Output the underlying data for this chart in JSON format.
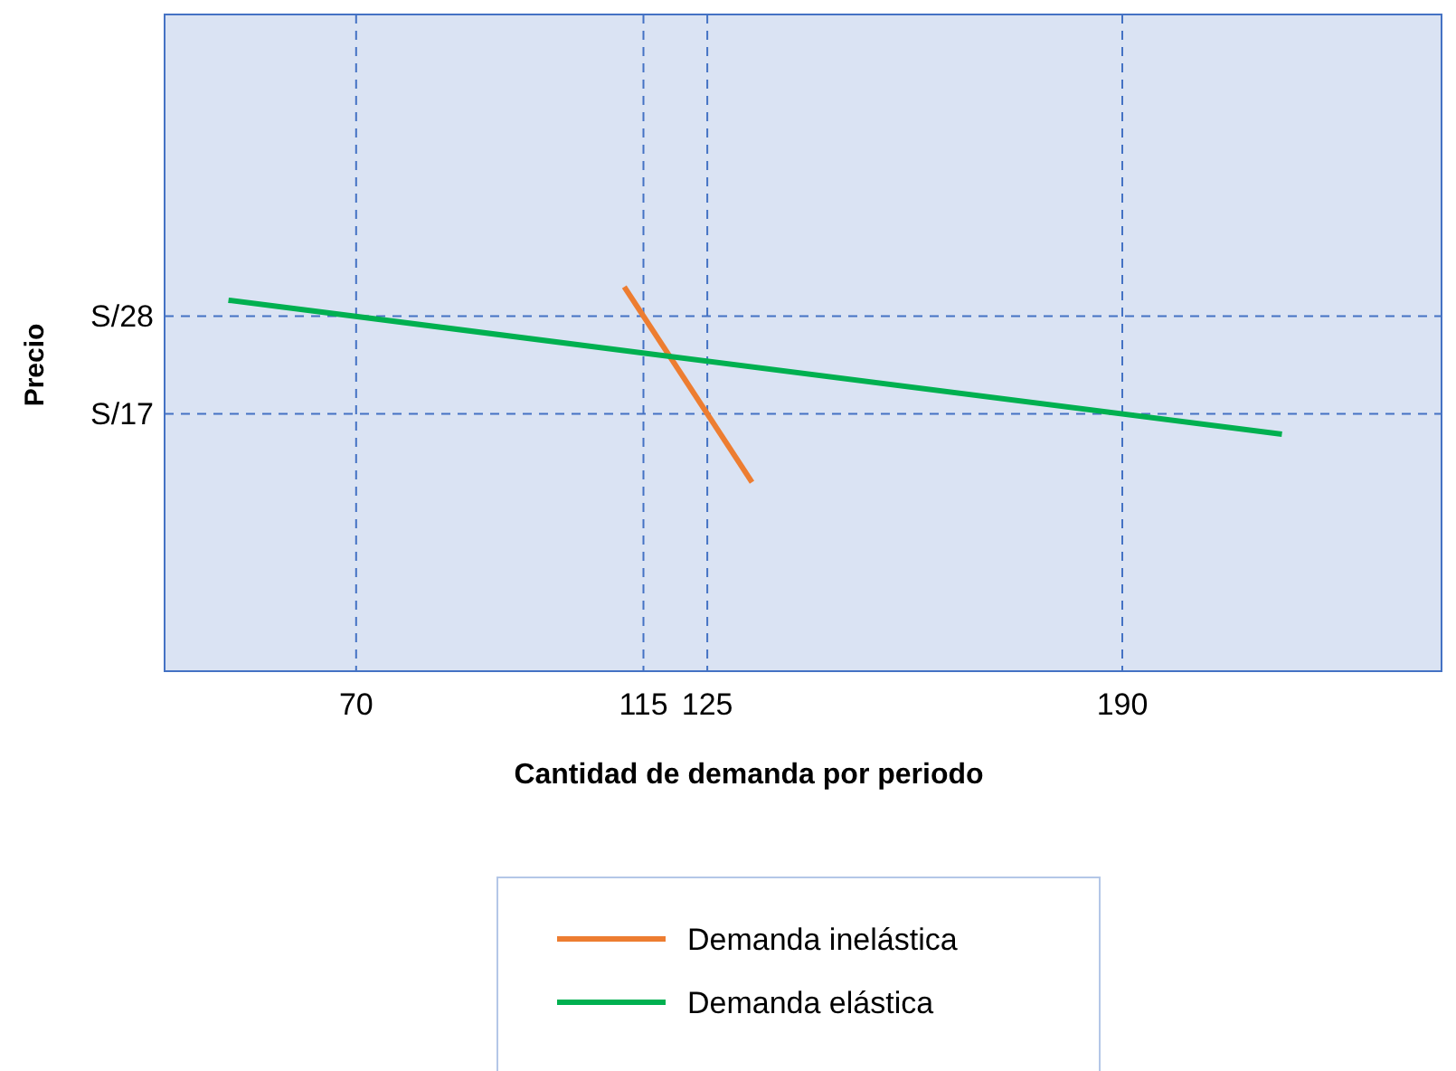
{
  "chart_data": {
    "type": "line",
    "xlabel": "Cantidad de demanda por periodo",
    "ylabel": "Precio",
    "xlim": [
      40,
      240
    ],
    "ylim": [
      -12,
      62
    ],
    "xticks": [
      70,
      115,
      125,
      190
    ],
    "yticks": [
      {
        "value": 17,
        "label": "S/17"
      },
      {
        "value": 28,
        "label": "S/28"
      }
    ],
    "series": [
      {
        "name": "Demanda inelástica",
        "color": "#ed7d31",
        "x": [
          112,
          132
        ],
        "values": [
          31.3,
          9.3
        ]
      },
      {
        "name": "Demanda elástica",
        "color": "#00b050",
        "x": [
          50,
          215
        ],
        "values": [
          29.8,
          14.7
        ]
      }
    ],
    "ref_lines": [
      {
        "axis": "x",
        "value": 70,
        "label": null,
        "color": "#4472c4",
        "line_style": "dashed"
      },
      {
        "axis": "x",
        "value": 115,
        "label": null,
        "color": "#4472c4",
        "line_style": "dashed"
      },
      {
        "axis": "x",
        "value": 125,
        "label": null,
        "color": "#4472c4",
        "line_style": "dashed"
      },
      {
        "axis": "x",
        "value": 190,
        "label": null,
        "color": "#4472c4",
        "line_style": "dashed"
      },
      {
        "axis": "y",
        "value": 28,
        "label": null,
        "color": "#4472c4",
        "line_style": "dashed"
      },
      {
        "axis": "y",
        "value": 17,
        "label": null,
        "color": "#4472c4",
        "line_style": "dashed"
      }
    ],
    "grid": false,
    "legend": "bottom",
    "marker": "none",
    "line_style": "solid"
  }
}
